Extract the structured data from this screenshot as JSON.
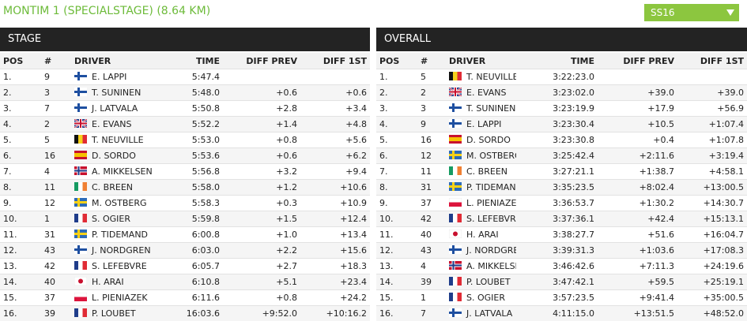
{
  "header": {
    "title": "MONTIM 1 (SPECIALSTAGE) (8.64 KM)",
    "stage_select": "SS16"
  },
  "stage": {
    "title": "STAGE",
    "columns": [
      "POS",
      "#",
      "DRIVER",
      "TIME",
      "DIFF PREV",
      "DIFF 1ST"
    ],
    "rows": [
      [
        "1.",
        9,
        "E. LAPPI",
        "5:47.4"
      ],
      [
        "2.",
        3,
        "T. SUNINEN",
        "5:48.0",
        "+0.6",
        "+0.6"
      ],
      [
        "3.",
        7,
        "J. LATVALA",
        "5:50.8",
        "+2.8",
        "+3.4"
      ],
      [
        "4.",
        2,
        "E. EVANS",
        "5:52.2",
        "+1.4",
        "+4.8"
      ],
      [
        "5.",
        5,
        "T. NEUVILLE",
        "5:53.0",
        "+0.8",
        "+5.6"
      ],
      [
        "6.",
        16,
        "D. SORDO",
        "5:53.6",
        "+0.6",
        "+6.2"
      ],
      [
        "7.",
        4,
        "A. MIKKELSEN",
        "5:56.8",
        "+3.2",
        "+9.4"
      ],
      [
        "8.",
        11,
        "C. BREEN",
        "5:58.0",
        "+1.2",
        "+10.6"
      ],
      [
        "9.",
        12,
        "M. OSTBERG",
        "5:58.3",
        "+0.3",
        "+10.9"
      ],
      [
        "10.",
        1,
        "S. OGIER",
        "5:59.8",
        "+1.5",
        "+12.4"
      ],
      [
        "11.",
        31,
        "P. TIDEMAND",
        "6:00.8",
        "+1.0",
        "+13.4"
      ],
      [
        "12.",
        43,
        "J. NORDGREN",
        "6:03.0",
        "+2.2",
        "+15.6"
      ],
      [
        "13.",
        42,
        "S. LEFEBVRE",
        "6:05.7",
        "+2.7",
        "+18.3"
      ],
      [
        "14.",
        40,
        "H. ARAI",
        "6:10.8",
        "+5.1",
        "+23.4"
      ],
      [
        "15.",
        37,
        "L. PIENIAZEK",
        "6:11.6",
        "+0.8",
        "+24.2"
      ],
      [
        "16.",
        39,
        "P. LOUBET",
        "16:03.6",
        "+9:52.0",
        "+10:16.2"
      ]
    ]
  },
  "overall": {
    "title": "OVERALL",
    "columns": [
      "POS",
      "#",
      "DRIVER",
      "TIME",
      "DIFF PREV",
      "DIFF 1ST"
    ],
    "rows": [
      [
        "1.",
        5,
        "T. NEUVILLE",
        "3:22:23.0"
      ],
      [
        "2.",
        2,
        "E. EVANS",
        "3:23:02.0",
        "+39.0",
        "+39.0"
      ],
      [
        "3.",
        3,
        "T. SUNINEN",
        "3:23:19.9",
        "+17.9",
        "+56.9"
      ],
      [
        "4.",
        9,
        "E. LAPPI",
        "3:23:30.4",
        "+10.5",
        "+1:07.4"
      ],
      [
        "5.",
        16,
        "D. SORDO",
        "3:23:30.8",
        "+0.4",
        "+1:07.8"
      ],
      [
        "6.",
        12,
        "M. OSTBERG",
        "3:25:42.4",
        "+2:11.6",
        "+3:19.4"
      ],
      [
        "7.",
        11,
        "C. BREEN",
        "3:27:21.1",
        "+1:38.7",
        "+4:58.1"
      ],
      [
        "8.",
        31,
        "P. TIDEMAND",
        "3:35:23.5",
        "+8:02.4",
        "+13:00.5"
      ],
      [
        "9.",
        37,
        "L. PIENIAZEK",
        "3:36:53.7",
        "+1:30.2",
        "+14:30.7"
      ],
      [
        "10.",
        42,
        "S. LEFEBVRE",
        "3:37:36.1",
        "+42.4",
        "+15:13.1"
      ],
      [
        "11.",
        40,
        "H. ARAI",
        "3:38:27.7",
        "+51.6",
        "+16:04.7"
      ],
      [
        "12.",
        43,
        "J. NORDGREN",
        "3:39:31.3",
        "+1:03.6",
        "+17:08.3"
      ],
      [
        "13.",
        4,
        "A. MIKKELSEN",
        "3:46:42.6",
        "+7:11.3",
        "+24:19.6"
      ],
      [
        "14.",
        39,
        "P. LOUBET",
        "3:47:42.1",
        "+59.5",
        "+25:19.1"
      ],
      [
        "15.",
        1,
        "S. OGIER",
        "3:57:23.5",
        "+9:41.4",
        "+35:00.5"
      ],
      [
        "16.",
        7,
        "J. LATVALA",
        "4:11:15.0",
        "+13:51.5",
        "+48:52.0"
      ]
    ]
  }
}
